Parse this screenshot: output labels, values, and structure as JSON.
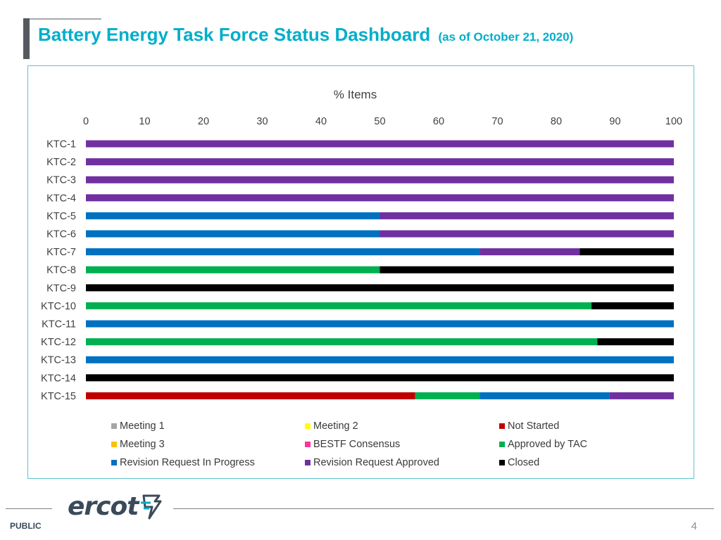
{
  "slide": {
    "title": "Battery Energy Task Force Status Dashboard",
    "subtitle": "(as of October 21, 2020)",
    "footer_label": "PUBLIC",
    "page_number": "4",
    "logo_text": "ercot",
    "logo_icon": "ercot-bolt-icon"
  },
  "colors": {
    "title": "#00aeca",
    "frame": "#5bc5d0"
  },
  "chart_data": {
    "type": "bar",
    "orientation": "horizontal",
    "stacked": true,
    "title": "% Items",
    "xlim": [
      0,
      100
    ],
    "xticks": [
      0,
      10,
      20,
      30,
      40,
      50,
      60,
      70,
      80,
      90,
      100
    ],
    "grid": false,
    "legend_position": "bottom",
    "categories": [
      "KTC-1",
      "KTC-2",
      "KTC-3",
      "KTC-4",
      "KTC-5",
      "KTC-6",
      "KTC-7",
      "KTC-8",
      "KTC-9",
      "KTC-10",
      "KTC-11",
      "KTC-12",
      "KTC-13",
      "KTC-14",
      "KTC-15"
    ],
    "series": [
      {
        "name": "Meeting 1",
        "color": "#a5a5a5",
        "values": [
          0,
          0,
          0,
          0,
          0,
          0,
          0,
          0,
          0,
          0,
          0,
          0,
          0,
          0,
          0
        ]
      },
      {
        "name": "Meeting 2",
        "color": "#ffff00",
        "values": [
          0,
          0,
          0,
          0,
          0,
          0,
          0,
          0,
          0,
          0,
          0,
          0,
          0,
          0,
          0
        ]
      },
      {
        "name": "Not Started",
        "color": "#c00000",
        "values": [
          0,
          0,
          0,
          0,
          0,
          0,
          0,
          0,
          0,
          0,
          0,
          0,
          0,
          0,
          56
        ]
      },
      {
        "name": "Meeting 3",
        "color": "#ffc000",
        "values": [
          0,
          0,
          0,
          0,
          0,
          0,
          0,
          0,
          0,
          0,
          0,
          0,
          0,
          0,
          0
        ]
      },
      {
        "name": "BESTF Consensus",
        "color": "#ff3399",
        "values": [
          0,
          0,
          0,
          0,
          0,
          0,
          0,
          0,
          0,
          0,
          0,
          0,
          0,
          0,
          0
        ]
      },
      {
        "name": "Approved by TAC",
        "color": "#00b050",
        "values": [
          0,
          0,
          0,
          0,
          0,
          0,
          0,
          50,
          0,
          86,
          0,
          87,
          0,
          0,
          11
        ]
      },
      {
        "name": "Revision Request In Progress",
        "color": "#0070c0",
        "values": [
          0,
          0,
          0,
          0,
          50,
          50,
          67,
          0,
          0,
          0,
          100,
          0,
          100,
          0,
          22
        ]
      },
      {
        "name": "Revision Request Approved",
        "color": "#7030a0",
        "values": [
          100,
          100,
          100,
          100,
          50,
          50,
          17,
          0,
          0,
          0,
          0,
          0,
          0,
          0,
          11
        ]
      },
      {
        "name": "Closed",
        "color": "#000000",
        "values": [
          0,
          0,
          0,
          0,
          0,
          0,
          16,
          50,
          100,
          14,
          0,
          13,
          0,
          100,
          0
        ]
      }
    ]
  }
}
